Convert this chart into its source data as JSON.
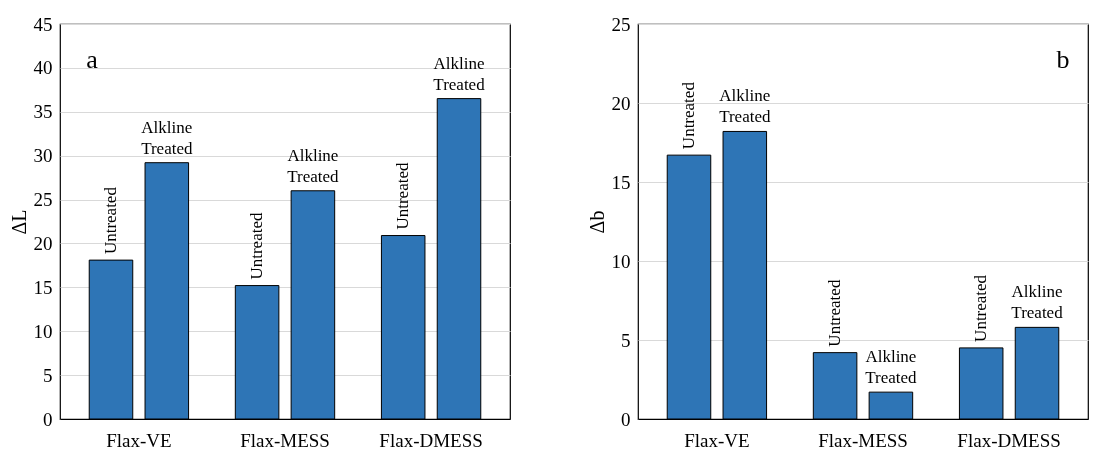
{
  "chart_data": [
    {
      "type": "bar",
      "annotations": [
        "a"
      ],
      "ylabel": "ΔL",
      "categories": [
        "Flax-VE",
        "Flax-MESS",
        "Flax-DMESS"
      ],
      "ylim": [
        0,
        45
      ],
      "yticks": [
        0,
        5,
        10,
        15,
        20,
        25,
        30,
        35,
        40,
        45
      ],
      "grid": "y",
      "series": [
        {
          "name": "Untreated",
          "color": "#2e75b6",
          "values": [
            18.1,
            15.2,
            20.9
          ]
        },
        {
          "name": "Alkline Treated",
          "color": "#2e75b6",
          "values": [
            29.2,
            26.0,
            36.5
          ]
        }
      ]
    },
    {
      "type": "bar",
      "annotations": [
        "b"
      ],
      "ylabel": "Δb",
      "categories": [
        "Flax-VE",
        "Flax-MESS",
        "Flax-DMESS"
      ],
      "ylim": [
        0,
        25
      ],
      "yticks": [
        0,
        5,
        10,
        15,
        20,
        25
      ],
      "grid": "y",
      "series": [
        {
          "name": "Untreated",
          "color": "#2e75b6",
          "values": [
            16.7,
            4.2,
            4.5
          ]
        },
        {
          "name": "Alkline Treated",
          "color": "#2e75b6",
          "values": [
            18.2,
            1.7,
            5.8
          ]
        }
      ]
    }
  ]
}
